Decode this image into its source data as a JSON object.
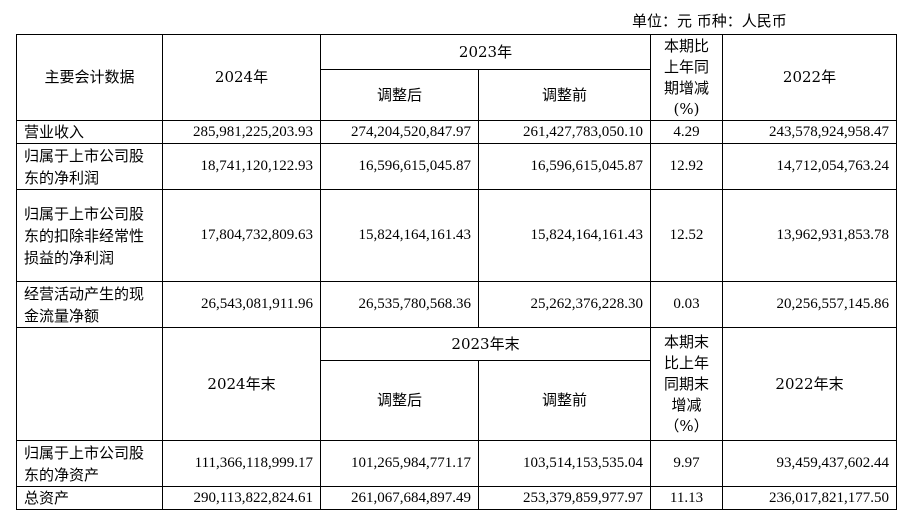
{
  "unit_line": "单位：元   币种：人民币",
  "header1": {
    "col_label": "主要会计数据",
    "col_2024": "2024年",
    "col_2023": "2023年",
    "col_adjusted": "调整后",
    "col_before": "调整前",
    "col_change": "本期比上年同期增减(%)",
    "col_2022": "2022年"
  },
  "rows1": [
    {
      "label": "营业收入",
      "v2024": "285,981,225,203.93",
      "adj": "274,204,520,847.97",
      "before": "261,427,783,050.10",
      "chg": "4.29",
      "v2022": "243,578,924,958.47"
    },
    {
      "label": "归属于上市公司股东的净利润",
      "v2024": "18,741,120,122.93",
      "adj": "16,596,615,045.87",
      "before": "16,596,615,045.87",
      "chg": "12.92",
      "v2022": "14,712,054,763.24"
    },
    {
      "label": "归属于上市公司股东的扣除非经常性损益的净利润",
      "v2024": "17,804,732,809.63",
      "adj": "15,824,164,161.43",
      "before": "15,824,164,161.43",
      "chg": "12.52",
      "v2022": "13,962,931,853.78"
    },
    {
      "label": "经营活动产生的现金流量净额",
      "v2024": "26,543,081,911.96",
      "adj": "26,535,780,568.36",
      "before": "25,262,376,228.30",
      "chg": "0.03",
      "v2022": "20,256,557,145.86"
    }
  ],
  "header2": {
    "col_2024": "2024年末",
    "col_2023": "2023年末",
    "col_adjusted": "调整后",
    "col_before": "调整前",
    "col_change": "本期末比上年同期末增减（%）",
    "col_2022": "2022年末"
  },
  "rows2": [
    {
      "label": "归属于上市公司股东的净资产",
      "v2024": "111,366,118,999.17",
      "adj": "101,265,984,771.17",
      "before": "103,514,153,535.04",
      "chg": "9.97",
      "v2022": "93,459,437,602.44"
    },
    {
      "label": "总资产",
      "v2024": "290,113,822,824.61",
      "adj": "261,067,684,897.49",
      "before": "253,379,859,977.97",
      "chg": "11.13",
      "v2022": "236,017,821,177.50"
    }
  ]
}
